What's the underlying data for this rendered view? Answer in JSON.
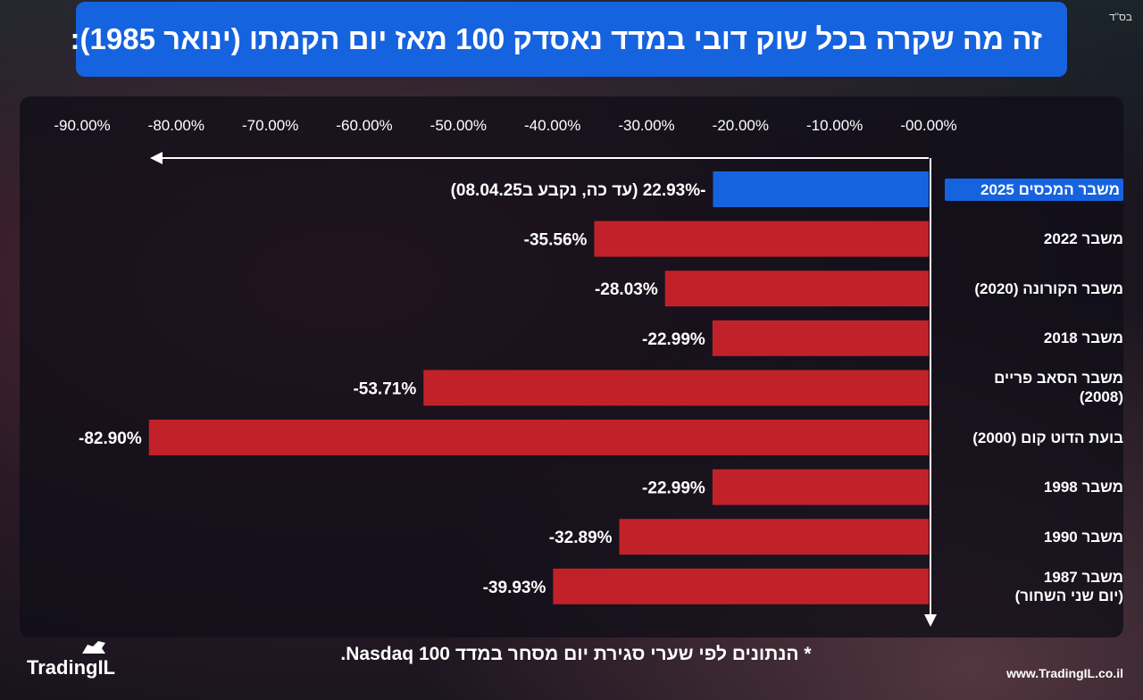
{
  "header": {
    "bsd": "בס\"ד",
    "title": "זה מה שקרה בכל שוק דובי במדד נאסדק 100 מאז יום הקמתו (ינואר 1985):"
  },
  "chart_data": {
    "type": "bar",
    "orientation": "horizontal",
    "x_axis_direction": "right-to-left",
    "xlim": [
      0,
      -90
    ],
    "x_ticks": [
      "-00.00%",
      "-10.00%",
      "-20.00%",
      "-30.00%",
      "-40.00%",
      "-50.00%",
      "-60.00%",
      "-70.00%",
      "-80.00%",
      "-90.00%"
    ],
    "categories": [
      [
        "משבר המכסים 2025"
      ],
      [
        "משבר 2022"
      ],
      [
        "משבר הקורונה (2020)"
      ],
      [
        "משבר 2018"
      ],
      [
        "משבר הסאב פריים",
        "(2008)"
      ],
      [
        "בועת הדוט קום (2000)"
      ],
      [
        "משבר 1998"
      ],
      [
        "משבר 1990"
      ],
      [
        "משבר 1987",
        "(יום שני השחור)"
      ]
    ],
    "values": [
      -22.93,
      -35.56,
      -28.03,
      -22.99,
      -53.71,
      -82.9,
      -22.99,
      -32.89,
      -39.93
    ],
    "value_labels": [
      "-22.93% (עד כה, נקבע ב08.04.25)",
      "-35.56%",
      "-28.03%",
      "-22.99%",
      "-53.71%",
      "-82.90%",
      "-22.99%",
      "-32.89%",
      "-39.93%"
    ],
    "highlight_index": 0,
    "colors": {
      "highlight": "#1663e0",
      "bar": "#c1222a",
      "axis": "#ffffff"
    }
  },
  "footnote": "* הנתונים לפי שערי סגירת יום מסחר במדד Nasdaq 100.",
  "brand": {
    "logo_text": "TradingIL",
    "website": "www.TradingIL.co.il"
  }
}
